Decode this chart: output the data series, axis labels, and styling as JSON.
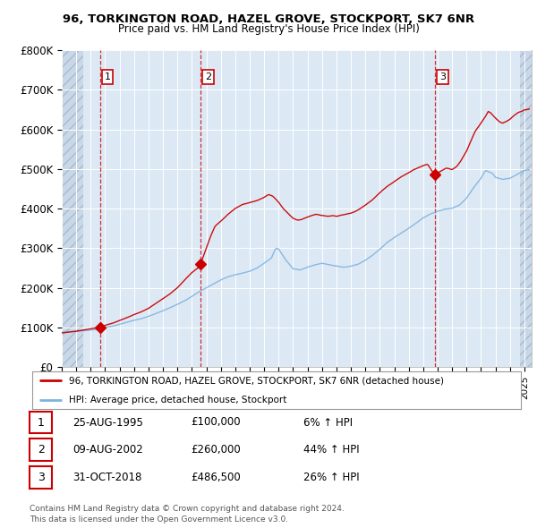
{
  "title_line1": "96, TORKINGTON ROAD, HAZEL GROVE, STOCKPORT, SK7 6NR",
  "title_line2": "Price paid vs. HM Land Registry's House Price Index (HPI)",
  "ytick_labels": [
    "£0",
    "£100K",
    "£200K",
    "£300K",
    "£400K",
    "£500K",
    "£600K",
    "£700K",
    "£800K"
  ],
  "ytick_values": [
    0,
    100000,
    200000,
    300000,
    400000,
    500000,
    600000,
    700000,
    800000
  ],
  "ylim": [
    0,
    800000
  ],
  "xlim_start": 1993.0,
  "xlim_end": 2025.5,
  "sale_dates": [
    1995.645,
    2002.604,
    2018.831
  ],
  "sale_prices": [
    100000,
    260000,
    486500
  ],
  "sale_labels": [
    "1",
    "2",
    "3"
  ],
  "hpi_line_color": "#7eb3e0",
  "sale_line_color": "#cc0000",
  "sale_marker_color": "#cc0000",
  "background_color": "#ffffff",
  "plot_bg_color": "#dce9f5",
  "grid_color": "#ffffff",
  "hatch_left_end": 1994.5,
  "hatch_right_start": 2024.7,
  "legend_entries": [
    "96, TORKINGTON ROAD, HAZEL GROVE, STOCKPORT, SK7 6NR (detached house)",
    "HPI: Average price, detached house, Stockport"
  ],
  "table_data": [
    [
      "1",
      "25-AUG-1995",
      "£100,000",
      "6% ↑ HPI"
    ],
    [
      "2",
      "09-AUG-2002",
      "£260,000",
      "44% ↑ HPI"
    ],
    [
      "3",
      "31-OCT-2018",
      "£486,500",
      "26% ↑ HPI"
    ]
  ],
  "footer_text": "Contains HM Land Registry data © Crown copyright and database right 2024.\nThis data is licensed under the Open Government Licence v3.0.",
  "xtick_years": [
    1993,
    1994,
    1995,
    1996,
    1997,
    1998,
    1999,
    2000,
    2001,
    2002,
    2003,
    2004,
    2005,
    2006,
    2007,
    2008,
    2009,
    2010,
    2011,
    2012,
    2013,
    2014,
    2015,
    2016,
    2017,
    2018,
    2019,
    2020,
    2021,
    2022,
    2023,
    2024,
    2025
  ]
}
